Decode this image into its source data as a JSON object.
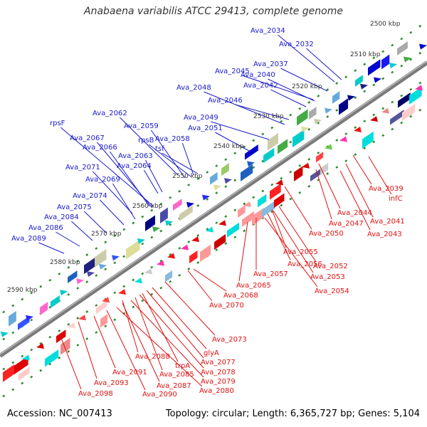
{
  "title": "Anabaena variabilis ATCC 29413, complete genome",
  "footer": {
    "accession": "Accession: NC_007413",
    "summary": "Topology: circular; Length: 6,365,727 bp; Genes: 5,104"
  },
  "colors": {
    "forward_label": "#1a1acc",
    "reverse_label": "#e01010",
    "backbone": "#888888",
    "tick": "#2e8b2e"
  },
  "kbp_ticks": [
    {
      "label": "2500 kbp",
      "pos": 2500
    },
    {
      "label": "2510 kbp",
      "pos": 2510
    },
    {
      "label": "2520 kbp",
      "pos": 2520
    },
    {
      "label": "2530 kbp",
      "pos": 2530
    },
    {
      "label": "2540 kbp",
      "pos": 2540
    },
    {
      "label": "2550 kbp",
      "pos": 2550
    },
    {
      "label": "2560 kbp",
      "pos": 2560
    },
    {
      "label": "2570 kbp",
      "pos": 2570
    },
    {
      "label": "2580 kbp",
      "pos": 2580
    },
    {
      "label": "2590 kbp",
      "pos": 2590
    }
  ],
  "forward_genes": [
    "Ava_2034",
    "Ava_2032",
    "Ava_2037",
    "Ava_2045",
    "Ava_2040",
    "Ava_2042",
    "Ava_2048",
    "Ava_2046",
    "Ava_2049",
    "Ava_2062",
    "Ava_2051",
    "Ava_2059",
    "rpsF",
    "rpsB",
    "tsf",
    "Ava_2058",
    "Ava_2067",
    "Ava_2066",
    "Ava_2063",
    "Ava_2064",
    "Ava_2071",
    "Ava_2069",
    "Ava_2074",
    "Ava_2075",
    "Ava_2084",
    "Ava_2086",
    "Ava_2089"
  ],
  "reverse_genes": [
    "Ava_2039",
    "infC",
    "Ava_2044",
    "Ava_2041",
    "Ava_2047",
    "Ava_2043",
    "Ava_2050",
    "Ava_2055",
    "Ava_2052",
    "Ava_2056",
    "Ava_2057",
    "Ava_2053",
    "Ava_2065",
    "Ava_2054",
    "Ava_2068",
    "Ava_2070",
    "Ava_2073",
    "glyA",
    "Ava_2088",
    "Ava_2077",
    "trpA",
    "Ava_2078",
    "Ava_2091",
    "Ava_2085",
    "Ava_2079",
    "Ava_2093",
    "Ava_2087",
    "Ava_2080",
    "Ava_2090",
    "Ava_2098"
  ]
}
